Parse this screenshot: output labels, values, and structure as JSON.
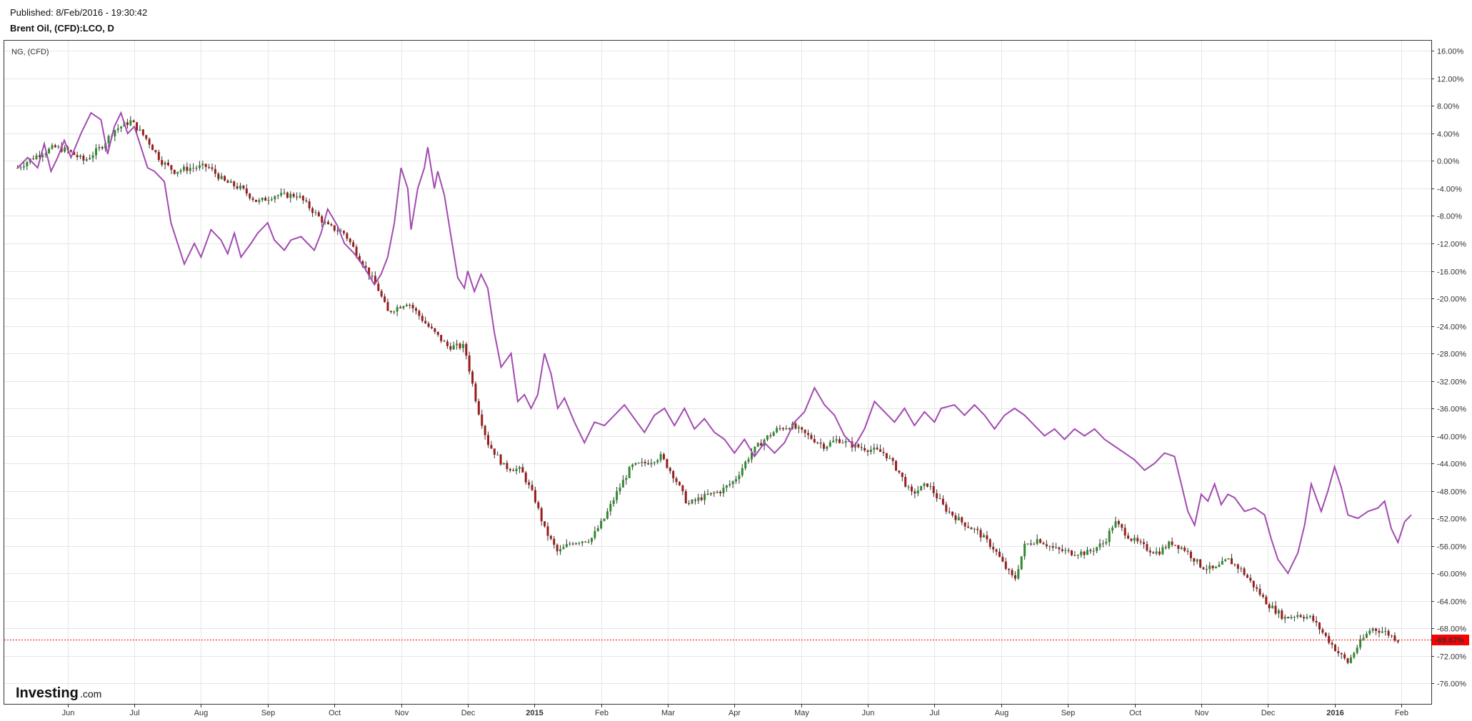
{
  "header": {
    "published": "Published: 8/Feb/2016 - 19:30:42",
    "symbol": "Brent Oil, (CFD):LCO, D"
  },
  "overlay_label": "NG,  (CFD)",
  "branding": {
    "logo_main": "Investing",
    "logo_suffix": ".com"
  },
  "colors": {
    "ng_line": "#a24bb0",
    "candle_up": "#2e8b2e",
    "candle_down": "#9b1c1c",
    "last_price_line": "#ff0000",
    "last_price_bg": "#ff0000",
    "grid": "#e6e6e6",
    "frame": "#333333"
  },
  "chart_data": {
    "type": "line",
    "title": "Brent Oil, (CFD):LCO, D",
    "y_unit": "%",
    "ylim": [
      -79,
      17.5
    ],
    "y_ticks": [
      "16.00%",
      "12.00%",
      "8.00%",
      "4.00%",
      "0.00%",
      "-4.00%",
      "-8.00%",
      "-12.00%",
      "-16.00%",
      "-20.00%",
      "-24.00%",
      "-28.00%",
      "-32.00%",
      "-36.00%",
      "-40.00%",
      "-44.00%",
      "-48.00%",
      "-52.00%",
      "-56.00%",
      "-60.00%",
      "-64.00%",
      "-68.00%",
      "-72.00%",
      "-76.00%"
    ],
    "x_ticks": [
      {
        "label": "Jun",
        "t": 0.5,
        "bold": false
      },
      {
        "label": "Jul",
        "t": 1.5,
        "bold": false
      },
      {
        "label": "Aug",
        "t": 2.5,
        "bold": false
      },
      {
        "label": "Sep",
        "t": 3.5,
        "bold": false
      },
      {
        "label": "Oct",
        "t": 4.5,
        "bold": false
      },
      {
        "label": "Nov",
        "t": 5.5,
        "bold": false
      },
      {
        "label": "Dec",
        "t": 6.5,
        "bold": false
      },
      {
        "label": "2015",
        "t": 7.5,
        "bold": true
      },
      {
        "label": "Feb",
        "t": 8.5,
        "bold": false
      },
      {
        "label": "Mar",
        "t": 9.5,
        "bold": false
      },
      {
        "label": "Apr",
        "t": 10.5,
        "bold": false
      },
      {
        "label": "May",
        "t": 11.5,
        "bold": false
      },
      {
        "label": "Jun",
        "t": 12.5,
        "bold": false
      },
      {
        "label": "Jul",
        "t": 13.5,
        "bold": false
      },
      {
        "label": "Aug",
        "t": 14.5,
        "bold": false
      },
      {
        "label": "Sep",
        "t": 15.5,
        "bold": false
      },
      {
        "label": "Oct",
        "t": 16.5,
        "bold": false
      },
      {
        "label": "Nov",
        "t": 17.5,
        "bold": false
      },
      {
        "label": "Dec",
        "t": 18.5,
        "bold": false
      },
      {
        "label": "2016",
        "t": 19.5,
        "bold": true
      },
      {
        "label": "Feb",
        "t": 20.5,
        "bold": false
      }
    ],
    "series": [
      {
        "name": "Brent Oil, (CFD):LCO, D",
        "style": "candlestick",
        "points": [
          [
            -0.25,
            -1
          ],
          [
            0.0,
            0.6
          ],
          [
            0.3,
            2
          ],
          [
            0.5,
            1.5
          ],
          [
            0.75,
            0
          ],
          [
            1.0,
            2
          ],
          [
            1.2,
            4.5
          ],
          [
            1.45,
            5.8
          ],
          [
            1.7,
            3
          ],
          [
            1.9,
            0
          ],
          [
            2.1,
            -1.5
          ],
          [
            2.35,
            -1
          ],
          [
            2.6,
            -0.8
          ],
          [
            2.85,
            -3
          ],
          [
            3.1,
            -4
          ],
          [
            3.35,
            -6
          ],
          [
            3.6,
            -5
          ],
          [
            3.95,
            -5
          ],
          [
            4.2,
            -7.5
          ],
          [
            4.4,
            -9.5
          ],
          [
            4.65,
            -10.5
          ],
          [
            4.9,
            -14.5
          ],
          [
            5.15,
            -18.5
          ],
          [
            5.3,
            -22
          ],
          [
            5.6,
            -20.5
          ],
          [
            5.9,
            -24
          ],
          [
            6.2,
            -27
          ],
          [
            6.45,
            -27
          ],
          [
            6.65,
            -36
          ],
          [
            6.8,
            -41
          ],
          [
            7.05,
            -44.5
          ],
          [
            7.3,
            -45
          ],
          [
            7.5,
            -49
          ],
          [
            7.65,
            -53.5
          ],
          [
            7.85,
            -57
          ],
          [
            8.05,
            -55.5
          ],
          [
            8.35,
            -55
          ],
          [
            8.55,
            -52
          ],
          [
            8.75,
            -48
          ],
          [
            8.95,
            -44.5
          ],
          [
            9.15,
            -44
          ],
          [
            9.4,
            -43
          ],
          [
            9.6,
            -46
          ],
          [
            9.8,
            -50
          ],
          [
            10.0,
            -49
          ],
          [
            10.3,
            -48
          ],
          [
            10.5,
            -46.5
          ],
          [
            10.75,
            -42.5
          ],
          [
            10.95,
            -40.5
          ],
          [
            11.15,
            -39
          ],
          [
            11.35,
            -38.5
          ],
          [
            11.6,
            -40
          ],
          [
            11.85,
            -41.5
          ],
          [
            12.05,
            -40.5
          ],
          [
            12.3,
            -41.5
          ],
          [
            12.55,
            -42
          ],
          [
            12.75,
            -42.5
          ],
          [
            12.95,
            -45
          ],
          [
            13.15,
            -48.5
          ],
          [
            13.4,
            -47
          ],
          [
            13.65,
            -50.5
          ],
          [
            13.9,
            -52.5
          ],
          [
            14.15,
            -54
          ],
          [
            14.4,
            -56.5
          ],
          [
            14.55,
            -59
          ],
          [
            14.7,
            -61
          ],
          [
            14.85,
            -56
          ],
          [
            15.05,
            -55
          ],
          [
            15.3,
            -56.5
          ],
          [
            15.55,
            -57
          ],
          [
            15.8,
            -57
          ],
          [
            16.05,
            -55.5
          ],
          [
            16.2,
            -52.5
          ],
          [
            16.45,
            -55
          ],
          [
            16.7,
            -56.5
          ],
          [
            16.85,
            -57
          ],
          [
            17.05,
            -55.5
          ],
          [
            17.25,
            -56.5
          ],
          [
            17.5,
            -59
          ],
          [
            17.7,
            -59.5
          ],
          [
            17.9,
            -58
          ],
          [
            18.1,
            -59.5
          ],
          [
            18.3,
            -62
          ],
          [
            18.5,
            -64.5
          ],
          [
            18.75,
            -66.5
          ],
          [
            18.95,
            -66
          ],
          [
            19.15,
            -66.5
          ],
          [
            19.35,
            -69
          ],
          [
            19.55,
            -71.5
          ],
          [
            19.7,
            -73
          ],
          [
            19.85,
            -70.5
          ],
          [
            20.05,
            -68
          ],
          [
            20.25,
            -68.5
          ],
          [
            20.45,
            -69.7
          ]
        ]
      },
      {
        "name": "NG,  (CFD)",
        "style": "line",
        "points": [
          [
            -0.25,
            -1
          ],
          [
            -0.1,
            0.5
          ],
          [
            0.05,
            -1
          ],
          [
            0.15,
            2.5
          ],
          [
            0.25,
            -1.5
          ],
          [
            0.35,
            0.5
          ],
          [
            0.45,
            3
          ],
          [
            0.55,
            0.5
          ],
          [
            0.7,
            4
          ],
          [
            0.85,
            7
          ],
          [
            1.0,
            6
          ],
          [
            1.1,
            1
          ],
          [
            1.2,
            5
          ],
          [
            1.3,
            7
          ],
          [
            1.4,
            4
          ],
          [
            1.5,
            5
          ],
          [
            1.6,
            2
          ],
          [
            1.7,
            -1
          ],
          [
            1.8,
            -1.5
          ],
          [
            1.95,
            -3
          ],
          [
            2.05,
            -9
          ],
          [
            2.15,
            -12
          ],
          [
            2.25,
            -15
          ],
          [
            2.4,
            -12
          ],
          [
            2.5,
            -14
          ],
          [
            2.65,
            -10
          ],
          [
            2.8,
            -11.5
          ],
          [
            2.9,
            -13.5
          ],
          [
            3.0,
            -10.5
          ],
          [
            3.1,
            -14
          ],
          [
            3.25,
            -12
          ],
          [
            3.35,
            -10.5
          ],
          [
            3.5,
            -9
          ],
          [
            3.6,
            -11.5
          ],
          [
            3.75,
            -13
          ],
          [
            3.85,
            -11.5
          ],
          [
            4.0,
            -11
          ],
          [
            4.1,
            -12
          ],
          [
            4.2,
            -13
          ],
          [
            4.3,
            -10.5
          ],
          [
            4.4,
            -7
          ],
          [
            4.55,
            -9.5
          ],
          [
            4.65,
            -12
          ],
          [
            4.8,
            -13.5
          ],
          [
            4.95,
            -15.5
          ],
          [
            5.1,
            -18
          ],
          [
            5.2,
            -16.5
          ],
          [
            5.3,
            -14
          ],
          [
            5.4,
            -9
          ],
          [
            5.5,
            -1
          ],
          [
            5.6,
            -4
          ],
          [
            5.65,
            -10
          ],
          [
            5.75,
            -4
          ],
          [
            5.85,
            -1
          ],
          [
            5.9,
            2
          ],
          [
            6.0,
            -4
          ],
          [
            6.05,
            -1.5
          ],
          [
            6.15,
            -5
          ],
          [
            6.25,
            -11
          ],
          [
            6.35,
            -17
          ],
          [
            6.45,
            -18.5
          ],
          [
            6.5,
            -16
          ],
          [
            6.6,
            -19
          ],
          [
            6.7,
            -16.5
          ],
          [
            6.8,
            -18.5
          ],
          [
            6.9,
            -25
          ],
          [
            7.0,
            -30
          ],
          [
            7.15,
            -28
          ],
          [
            7.25,
            -35
          ],
          [
            7.35,
            -34
          ],
          [
            7.45,
            -36
          ],
          [
            7.55,
            -34
          ],
          [
            7.65,
            -28
          ],
          [
            7.75,
            -31
          ],
          [
            7.85,
            -36
          ],
          [
            7.95,
            -34.5
          ],
          [
            8.1,
            -38
          ],
          [
            8.25,
            -41
          ],
          [
            8.4,
            -38
          ],
          [
            8.55,
            -38.5
          ],
          [
            8.7,
            -37
          ],
          [
            8.85,
            -35.5
          ],
          [
            9.0,
            -37.5
          ],
          [
            9.15,
            -39.5
          ],
          [
            9.3,
            -37
          ],
          [
            9.45,
            -36
          ],
          [
            9.6,
            -38.5
          ],
          [
            9.75,
            -36
          ],
          [
            9.9,
            -39
          ],
          [
            10.05,
            -37.5
          ],
          [
            10.2,
            -39.5
          ],
          [
            10.35,
            -40.5
          ],
          [
            10.5,
            -42.5
          ],
          [
            10.65,
            -40.5
          ],
          [
            10.8,
            -43
          ],
          [
            10.95,
            -41
          ],
          [
            11.1,
            -42.5
          ],
          [
            11.25,
            -41
          ],
          [
            11.4,
            -38
          ],
          [
            11.55,
            -36.5
          ],
          [
            11.7,
            -33
          ],
          [
            11.85,
            -35.5
          ],
          [
            12.0,
            -37
          ],
          [
            12.15,
            -40
          ],
          [
            12.3,
            -41.5
          ],
          [
            12.45,
            -39
          ],
          [
            12.6,
            -35
          ],
          [
            12.75,
            -36.5
          ],
          [
            12.9,
            -38
          ],
          [
            13.05,
            -36
          ],
          [
            13.2,
            -38.5
          ],
          [
            13.35,
            -36.5
          ],
          [
            13.5,
            -38
          ],
          [
            13.6,
            -36
          ],
          [
            13.8,
            -35.5
          ],
          [
            13.95,
            -37
          ],
          [
            14.1,
            -35.5
          ],
          [
            14.25,
            -37
          ],
          [
            14.4,
            -39
          ],
          [
            14.55,
            -37
          ],
          [
            14.7,
            -36
          ],
          [
            14.85,
            -37
          ],
          [
            15.0,
            -38.5
          ],
          [
            15.15,
            -40
          ],
          [
            15.3,
            -39
          ],
          [
            15.45,
            -40.5
          ],
          [
            15.6,
            -39
          ],
          [
            15.75,
            -40
          ],
          [
            15.9,
            -39
          ],
          [
            16.05,
            -40.5
          ],
          [
            16.2,
            -41.5
          ],
          [
            16.35,
            -42.5
          ],
          [
            16.5,
            -43.5
          ],
          [
            16.65,
            -45
          ],
          [
            16.8,
            -44
          ],
          [
            16.95,
            -42.5
          ],
          [
            17.1,
            -43
          ],
          [
            17.2,
            -47
          ],
          [
            17.3,
            -51
          ],
          [
            17.4,
            -53
          ],
          [
            17.5,
            -48.5
          ],
          [
            17.6,
            -49.5
          ],
          [
            17.7,
            -47
          ],
          [
            17.8,
            -50
          ],
          [
            17.9,
            -48.5
          ],
          [
            18.0,
            -49
          ],
          [
            18.15,
            -51
          ],
          [
            18.3,
            -50.5
          ],
          [
            18.45,
            -51.5
          ],
          [
            18.55,
            -55
          ],
          [
            18.65,
            -58
          ],
          [
            18.8,
            -60
          ],
          [
            18.95,
            -57
          ],
          [
            19.05,
            -53
          ],
          [
            19.15,
            -47
          ],
          [
            19.3,
            -51
          ],
          [
            19.4,
            -48
          ],
          [
            19.5,
            -44.5
          ],
          [
            19.6,
            -47.5
          ],
          [
            19.7,
            -51.5
          ],
          [
            19.85,
            -52
          ],
          [
            20.0,
            -51
          ],
          [
            20.15,
            -50.5
          ],
          [
            20.25,
            -49.5
          ],
          [
            20.35,
            -53.5
          ],
          [
            20.45,
            -55.5
          ],
          [
            20.55,
            -52.5
          ],
          [
            20.65,
            -51.5
          ]
        ]
      }
    ],
    "last_value": -69.67,
    "last_value_label": "-69.67%",
    "grid": true
  }
}
